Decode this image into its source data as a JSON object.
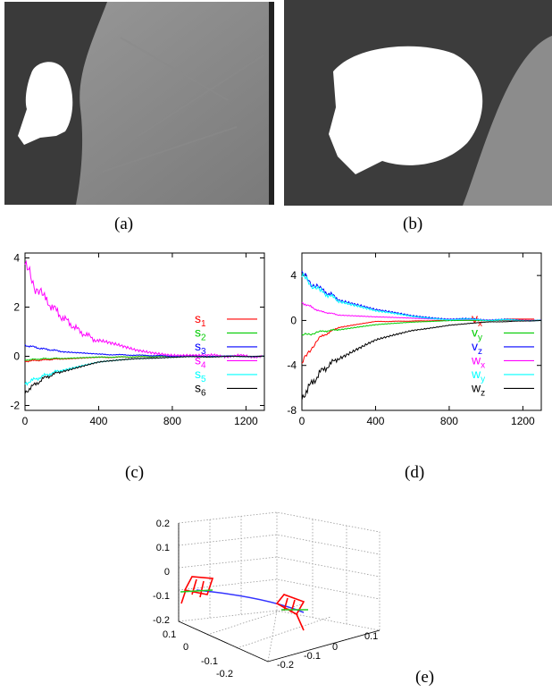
{
  "captions": {
    "a": "(a)",
    "b": "(b)",
    "c": "(c)",
    "d": "(d)",
    "e": "(e)"
  },
  "colors": {
    "s1": "#ff0000",
    "s2": "#00cc00",
    "s3": "#0000ff",
    "s4": "#ff00ff",
    "s5": "#00ffff",
    "s6": "#000000"
  },
  "chart_data": [
    {
      "id": "c",
      "type": "line",
      "xlim": [
        0,
        1300
      ],
      "ylim": [
        -2.2,
        4.2
      ],
      "xticks": [
        "0",
        "400",
        "800",
        "1200"
      ],
      "yticks": [
        "4",
        "2",
        "0",
        "-2"
      ],
      "grid": false,
      "legend_position": "right-middle",
      "series": [
        {
          "name": "s1",
          "x": [
            0,
            100,
            200,
            400,
            800,
            1300
          ],
          "y": [
            -0.2,
            -0.15,
            -0.1,
            -0.05,
            0.0,
            0.0
          ]
        },
        {
          "name": "s2",
          "x": [
            0,
            100,
            200,
            400,
            800,
            1300
          ],
          "y": [
            -0.15,
            -0.1,
            -0.08,
            -0.04,
            0.0,
            0.0
          ]
        },
        {
          "name": "s3",
          "x": [
            0,
            100,
            200,
            400,
            800,
            1300
          ],
          "y": [
            0.45,
            0.3,
            0.2,
            0.08,
            0.01,
            0.0
          ]
        },
        {
          "name": "s4",
          "x": [
            0,
            50,
            100,
            200,
            300,
            400,
            600,
            800,
            1000,
            1300
          ],
          "y": [
            3.7,
            2.9,
            2.4,
            1.6,
            1.0,
            0.6,
            0.25,
            0.08,
            0.02,
            0.0
          ]
        },
        {
          "name": "s5",
          "x": [
            0,
            100,
            200,
            400,
            600,
            800,
            1300
          ],
          "y": [
            -1.1,
            -0.8,
            -0.55,
            -0.25,
            -0.1,
            -0.03,
            0.0
          ]
        },
        {
          "name": "s6",
          "x": [
            0,
            100,
            200,
            400,
            600,
            800,
            1300
          ],
          "y": [
            -1.45,
            -0.9,
            -0.6,
            -0.25,
            -0.1,
            -0.03,
            0.0
          ]
        }
      ]
    },
    {
      "id": "d",
      "type": "line",
      "xlim": [
        0,
        1300
      ],
      "ylim": [
        -8,
        6
      ],
      "xticks": [
        "0",
        "400",
        "800",
        "1200"
      ],
      "yticks": [
        "4",
        "0",
        "-4",
        "-8"
      ],
      "grid": false,
      "legend_position": "right-middle",
      "series": [
        {
          "name": "vx",
          "x": [
            0,
            50,
            100,
            200,
            400,
            800,
            1300
          ],
          "y": [
            -3.8,
            -2.5,
            -1.5,
            -0.6,
            -0.1,
            0.0,
            0.0
          ]
        },
        {
          "name": "vy",
          "x": [
            0,
            50,
            100,
            200,
            400,
            600,
            800,
            1300
          ],
          "y": [
            -1.3,
            -1.2,
            -1.0,
            -0.8,
            -0.4,
            -0.15,
            0.0,
            0.0
          ]
        },
        {
          "name": "vz",
          "x": [
            0,
            50,
            100,
            200,
            400,
            600,
            800,
            1300
          ],
          "y": [
            4.2,
            3.3,
            2.8,
            1.9,
            0.9,
            0.4,
            0.15,
            0.0
          ]
        },
        {
          "name": "wx",
          "x": [
            0,
            100,
            200,
            400,
            600,
            800,
            1300
          ],
          "y": [
            1.6,
            0.8,
            0.5,
            0.3,
            0.2,
            0.1,
            0.0
          ]
        },
        {
          "name": "wy",
          "x": [
            0,
            50,
            100,
            200,
            400,
            600,
            800,
            1300
          ],
          "y": [
            4.0,
            3.2,
            2.6,
            1.8,
            0.8,
            0.35,
            0.1,
            0.0
          ]
        },
        {
          "name": "wz",
          "x": [
            0,
            100,
            200,
            400,
            600,
            800,
            1000,
            1300
          ],
          "y": [
            -6.8,
            -4.6,
            -3.3,
            -1.8,
            -0.9,
            -0.4,
            -0.15,
            0.0
          ]
        }
      ]
    },
    {
      "id": "e",
      "type": "line",
      "zticks": [
        "0.2",
        "0.1",
        "0",
        "-0.1",
        "-0.2"
      ],
      "xticks": [
        "0.1",
        "0",
        "-0.1",
        "-0.2"
      ],
      "yticks": [
        "-0.2",
        "-0.1",
        "0",
        "0.1"
      ],
      "grid": true
    }
  ]
}
